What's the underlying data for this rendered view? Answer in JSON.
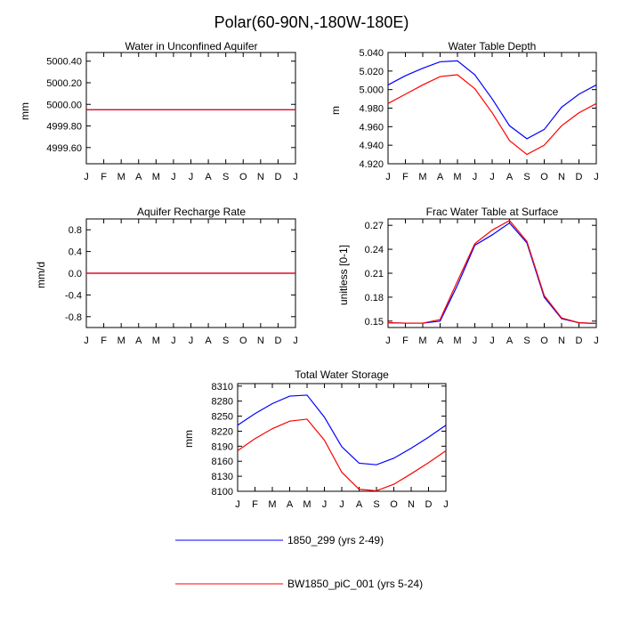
{
  "figure": {
    "title": "Polar(60-90N,-180W-180E)"
  },
  "legend": [
    {
      "label": "1850_299 (yrs 2-49)",
      "color": "#0000ff"
    },
    {
      "label": "BW1850_piC_001 (yrs 5-24)",
      "color": "#ff0000"
    }
  ],
  "chart_data": [
    {
      "type": "line",
      "title": "Water in Unconfined Aquifer",
      "xlabel": "",
      "ylabel": "mm",
      "x": [
        "J",
        "F",
        "M",
        "A",
        "M",
        "J",
        "J",
        "A",
        "S",
        "O",
        "N",
        "D",
        "J"
      ],
      "ylim": [
        4999.45,
        5000.48
      ],
      "yticks": [
        "5000.40",
        "5000.20",
        "5000.00",
        "4999.80",
        "4999.60"
      ],
      "ytick_values": [
        5000.4,
        5000.2,
        5000.0,
        4999.8,
        4999.6
      ],
      "series": [
        {
          "name": "1850_299 (yrs 2-49)",
          "color": "#0000ff",
          "values": [
            4999.95,
            4999.95,
            4999.95,
            4999.95,
            4999.95,
            4999.95,
            4999.95,
            4999.95,
            4999.95,
            4999.95,
            4999.95,
            4999.95,
            4999.95
          ]
        },
        {
          "name": "BW1850_piC_001 (yrs 5-24)",
          "color": "#ff0000",
          "values": [
            4999.95,
            4999.95,
            4999.95,
            4999.95,
            4999.95,
            4999.95,
            4999.95,
            4999.95,
            4999.95,
            4999.95,
            4999.95,
            4999.95,
            4999.95
          ]
        }
      ]
    },
    {
      "type": "line",
      "title": "Water Table Depth",
      "xlabel": "",
      "ylabel": "m",
      "x": [
        "J",
        "F",
        "M",
        "A",
        "M",
        "J",
        "J",
        "A",
        "S",
        "O",
        "N",
        "D",
        "J"
      ],
      "ylim": [
        4.92,
        5.04
      ],
      "yticks": [
        "5.040",
        "5.020",
        "5.000",
        "4.980",
        "4.960",
        "4.940",
        "4.920"
      ],
      "ytick_values": [
        5.04,
        5.02,
        5.0,
        4.98,
        4.96,
        4.94,
        4.92
      ],
      "series": [
        {
          "name": "1850_299 (yrs 2-49)",
          "color": "#0000ff",
          "values": [
            5.005,
            5.015,
            5.023,
            5.03,
            5.031,
            5.016,
            4.99,
            4.961,
            4.947,
            4.957,
            4.981,
            4.995,
            5.005
          ]
        },
        {
          "name": "BW1850_piC_001 (yrs 5-24)",
          "color": "#ff0000",
          "values": [
            4.985,
            4.995,
            5.005,
            5.014,
            5.016,
            5.001,
            4.975,
            4.945,
            4.93,
            4.94,
            4.961,
            4.975,
            4.985
          ]
        }
      ]
    },
    {
      "type": "line",
      "title": "Aquifer Recharge Rate",
      "xlabel": "",
      "ylabel": "mm/d",
      "x": [
        "J",
        "F",
        "M",
        "A",
        "M",
        "J",
        "J",
        "A",
        "S",
        "O",
        "N",
        "D",
        "J"
      ],
      "ylim": [
        -1.0,
        1.0
      ],
      "yticks": [
        "0.8",
        "0.4",
        "0.0",
        "-0.4",
        "-0.8"
      ],
      "ytick_values": [
        0.8,
        0.4,
        0.0,
        -0.4,
        -0.8
      ],
      "series": [
        {
          "name": "1850_299 (yrs 2-49)",
          "color": "#0000ff",
          "values": [
            0,
            0,
            0,
            0,
            0,
            0,
            0,
            0,
            0,
            0,
            0,
            0,
            0
          ]
        },
        {
          "name": "BW1850_piC_001 (yrs 5-24)",
          "color": "#ff0000",
          "values": [
            0,
            0,
            0,
            0,
            0,
            0,
            0,
            0,
            0,
            0,
            0,
            0,
            0
          ]
        }
      ]
    },
    {
      "type": "line",
      "title": "Frac Water Table at Surface",
      "xlabel": "",
      "ylabel": "unitless [0-1]",
      "x": [
        "J",
        "F",
        "M",
        "A",
        "M",
        "J",
        "J",
        "A",
        "S",
        "O",
        "N",
        "D",
        "J"
      ],
      "ylim": [
        0.142,
        0.278
      ],
      "yticks": [
        "0.27",
        "0.24",
        "0.21",
        "0.18",
        "0.15"
      ],
      "ytick_values": [
        0.27,
        0.24,
        0.21,
        0.18,
        0.15
      ],
      "series": [
        {
          "name": "1850_299 (yrs 2-49)",
          "color": "#0000ff",
          "values": [
            0.148,
            0.1475,
            0.1475,
            0.15,
            0.195,
            0.245,
            0.258,
            0.273,
            0.248,
            0.18,
            0.153,
            0.148,
            0.147
          ]
        },
        {
          "name": "BW1850_piC_001 (yrs 5-24)",
          "color": "#ff0000",
          "values": [
            0.148,
            0.1475,
            0.1475,
            0.152,
            0.2,
            0.247,
            0.264,
            0.276,
            0.25,
            0.182,
            0.154,
            0.148,
            0.147
          ]
        }
      ]
    },
    {
      "type": "line",
      "title": "Total Water Storage",
      "xlabel": "",
      "ylabel": "mm",
      "x": [
        "J",
        "F",
        "M",
        "A",
        "M",
        "J",
        "J",
        "A",
        "S",
        "O",
        "N",
        "D",
        "J"
      ],
      "ylim": [
        8100,
        8315
      ],
      "yticks": [
        "8310",
        "8280",
        "8250",
        "8220",
        "8190",
        "8160",
        "8130",
        "8100"
      ],
      "ytick_values": [
        8310,
        8280,
        8250,
        8220,
        8190,
        8160,
        8130,
        8100
      ],
      "series": [
        {
          "name": "1850_299 (yrs 2-49)",
          "color": "#0000ff",
          "values": [
            8232,
            8255,
            8275,
            8290,
            8292,
            8248,
            8189,
            8156,
            8153,
            8166,
            8186,
            8208,
            8232
          ]
        },
        {
          "name": "BW1850_piC_001 (yrs 5-24)",
          "color": "#ff0000",
          "values": [
            8181,
            8205,
            8225,
            8240,
            8244,
            8202,
            8138,
            8104,
            8101,
            8114,
            8135,
            8157,
            8181
          ]
        }
      ]
    }
  ]
}
